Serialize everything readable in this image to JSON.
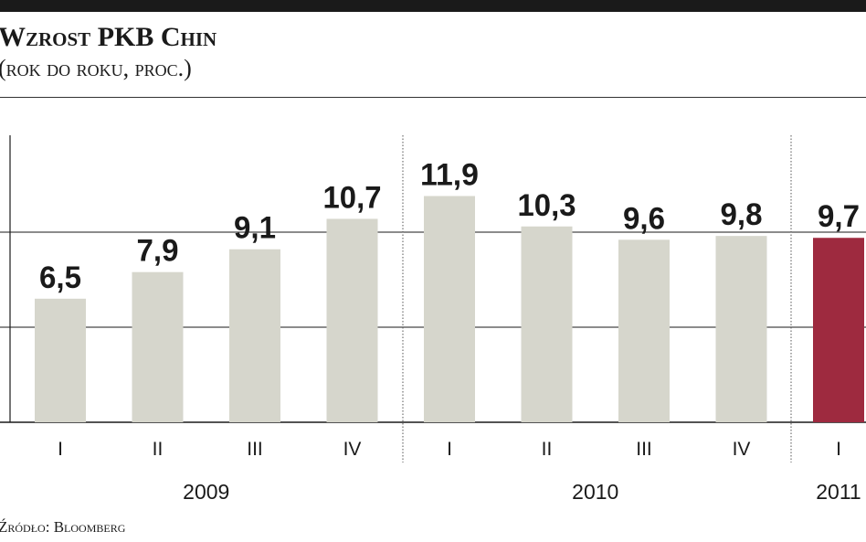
{
  "title": "Wzrost PKB Chin",
  "subtitle": "(rok do roku, proc.)",
  "source": "Źródło: Bloomberg",
  "colors": {
    "bar": "#d6d6cc",
    "highlight": "#9e2a3f",
    "text": "#1a1a1a",
    "grid": "#1a1a1a"
  },
  "chart_data": {
    "type": "bar",
    "title": "Wzrost PKB Chin",
    "subtitle": "(rok do roku, proc.)",
    "categories": [
      "I",
      "II",
      "III",
      "IV",
      "I",
      "II",
      "III",
      "IV",
      "I"
    ],
    "groups": [
      "2009",
      "2009",
      "2009",
      "2009",
      "2010",
      "2010",
      "2010",
      "2010",
      "2011"
    ],
    "group_labels": [
      "2009",
      "2010",
      "2011"
    ],
    "values": [
      6.5,
      7.9,
      9.1,
      10.7,
      11.9,
      10.3,
      9.6,
      9.8,
      9.7
    ],
    "data_labels": [
      "6,5",
      "7,9",
      "9,1",
      "10,7",
      "11,9",
      "10,3",
      "9,6",
      "9,8",
      "9,7"
    ],
    "highlight_index": 8,
    "ylim": [
      0,
      15
    ],
    "ygrid": [
      5,
      10
    ],
    "grid": true,
    "xlabel": "",
    "ylabel": ""
  }
}
